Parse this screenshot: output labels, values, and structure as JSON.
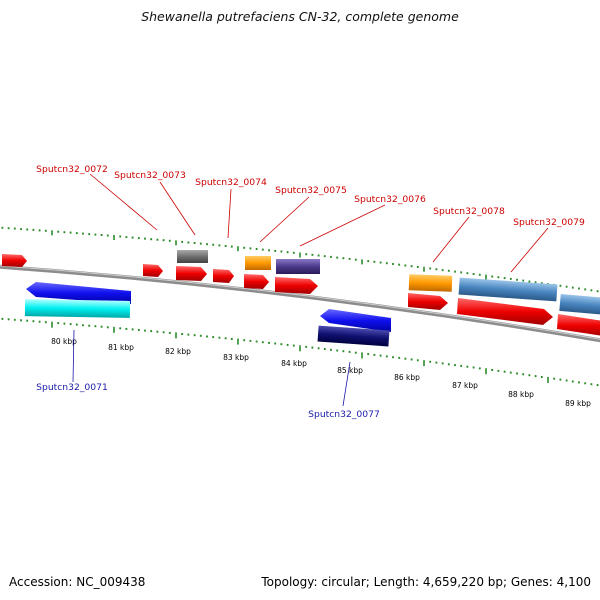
{
  "title": "Shewanella putrefaciens CN-32, complete genome",
  "footer": {
    "accession": "Accession: NC_009438",
    "summary": "Topology: circular; Length: 4,659,220 bp; Genes: 4,100"
  },
  "colors": {
    "forward_label": "#cc0000",
    "reverse_label": "#1a1aaa",
    "backbone": "#8c8c8c",
    "tick": "#2a8a2a"
  },
  "scale": {
    "labels": [
      "80 kbp",
      "81 kbp",
      "82 kbp",
      "83 kbp",
      "84 kbp",
      "85 kbp",
      "86 kbp",
      "87 kbp",
      "88 kbp",
      "89 kbp"
    ]
  },
  "gene_labels": [
    {
      "name": "Sputcn32_0071",
      "strand": "reverse"
    },
    {
      "name": "Sputcn32_0072",
      "strand": "forward"
    },
    {
      "name": "Sputcn32_0073",
      "strand": "forward"
    },
    {
      "name": "Sputcn32_0074",
      "strand": "forward"
    },
    {
      "name": "Sputcn32_0075",
      "strand": "forward"
    },
    {
      "name": "Sputcn32_0076",
      "strand": "forward"
    },
    {
      "name": "Sputcn32_0077",
      "strand": "reverse"
    },
    {
      "name": "Sputcn32_0078",
      "strand": "forward"
    },
    {
      "name": "Sputcn32_0079",
      "strand": "forward"
    }
  ]
}
